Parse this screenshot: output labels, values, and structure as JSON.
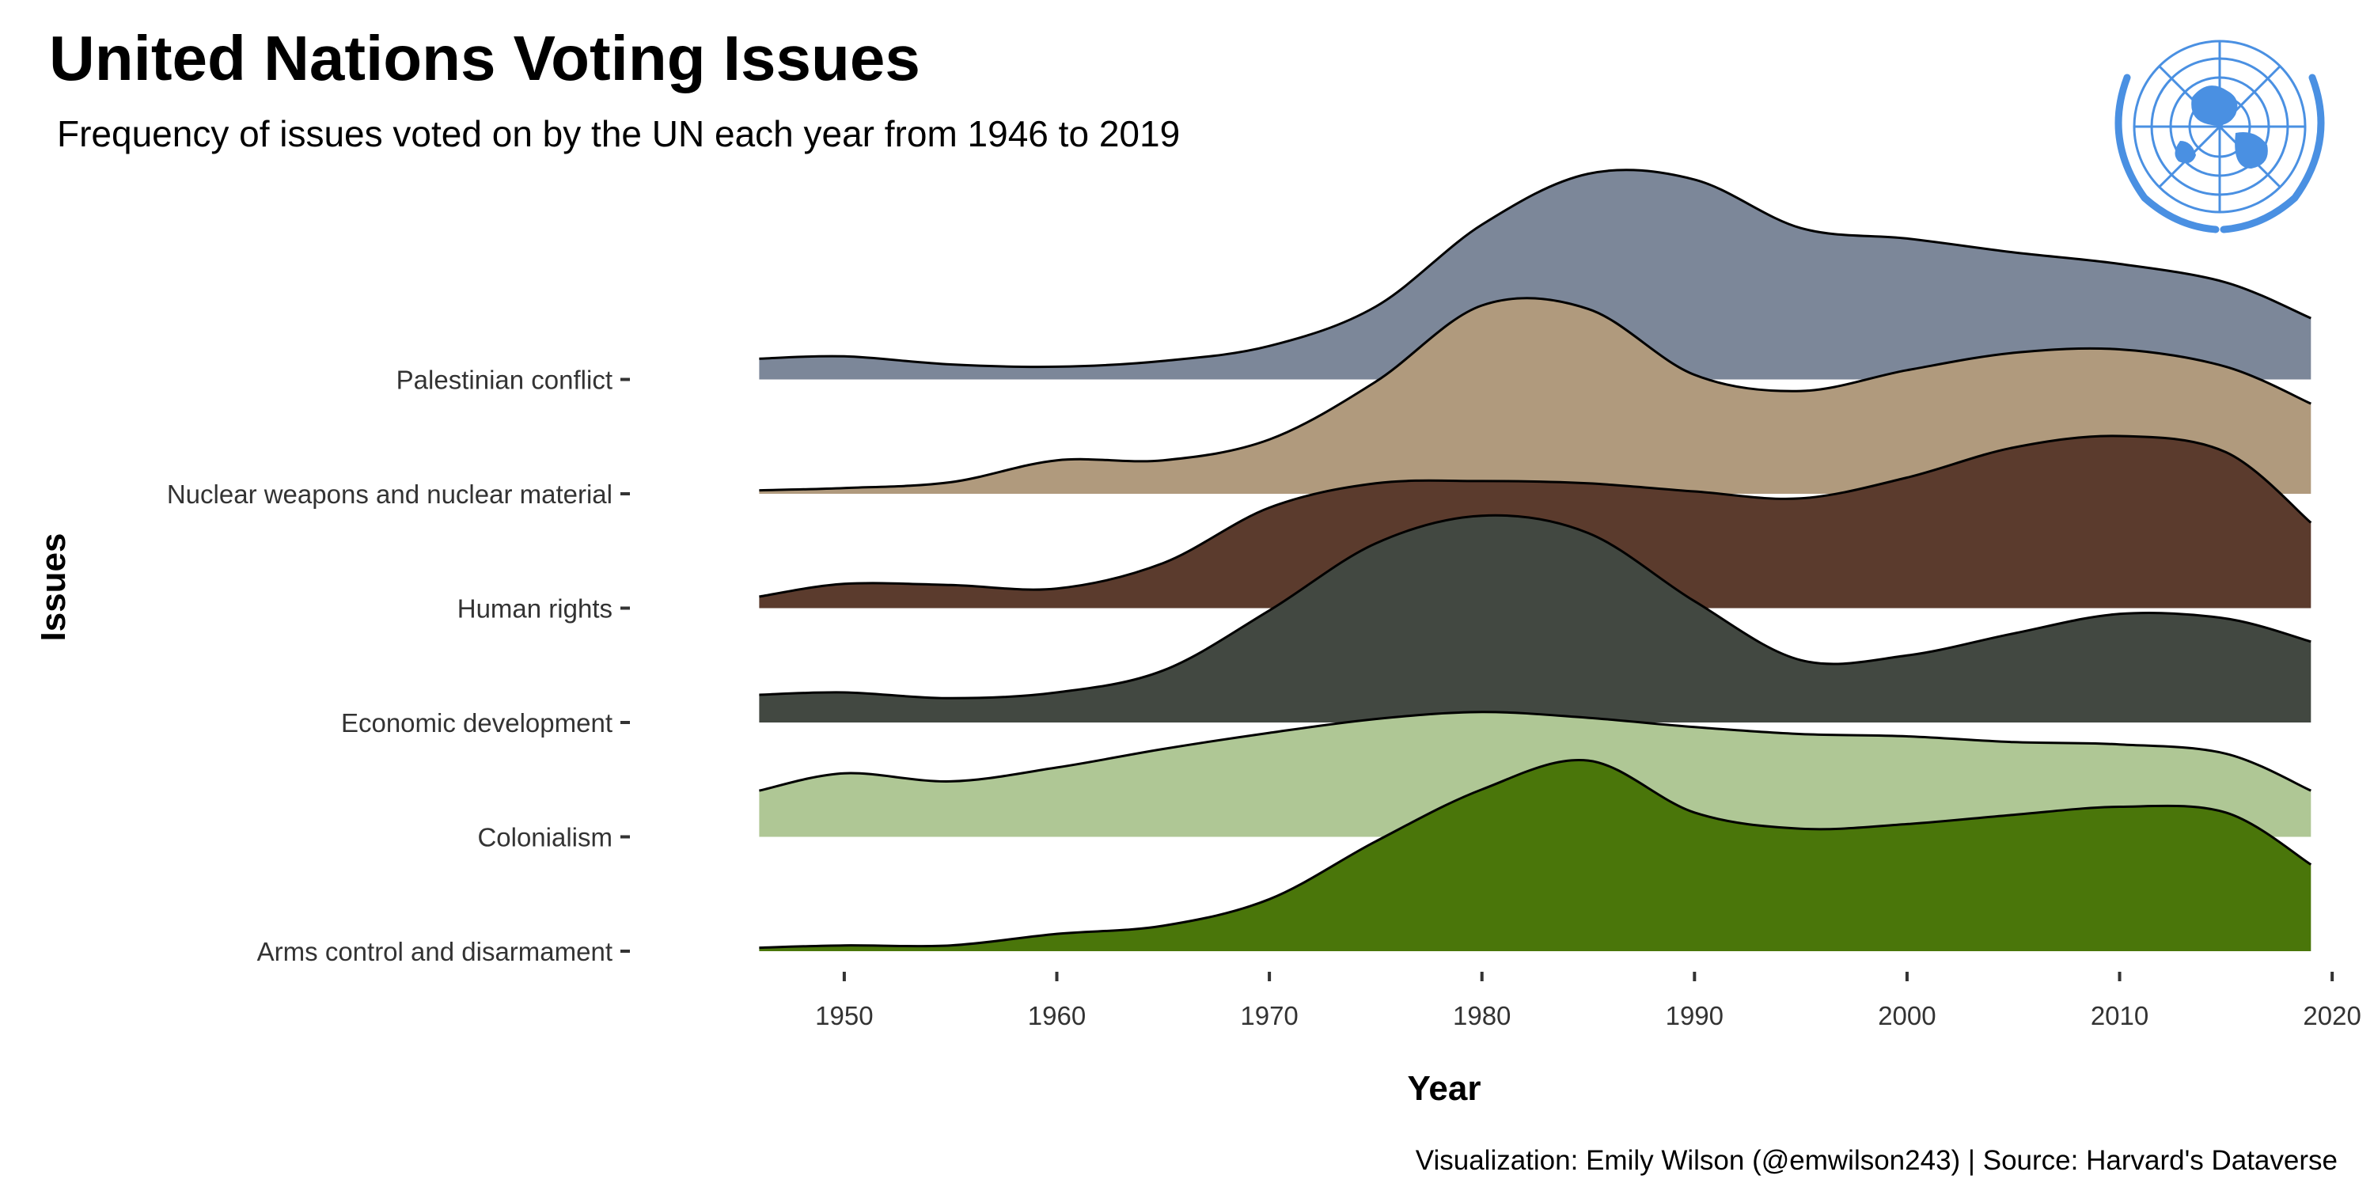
{
  "title": "United Nations Voting Issues",
  "subtitle": "Frequency of issues voted on by the UN each year from 1946 to 2019",
  "caption": "Visualization: Emily Wilson (@emwilson243) | Source: Harvard's Dataverse",
  "logo": {
    "icon": "united-nations-emblem-icon",
    "color": "#4a90e2"
  },
  "chart_data": {
    "type": "area",
    "subtype": "ridgeline-density",
    "xlabel": "Year",
    "ylabel": "Issues",
    "xlim": [
      1942,
      2021
    ],
    "xticks": [
      1950,
      1960,
      1970,
      1980,
      1990,
      2000,
      2010,
      2020
    ],
    "x_range": [
      1946,
      2019
    ],
    "grid": false,
    "legend": "none",
    "series": [
      {
        "name": "Arms control and disarmament",
        "color": "#4a760a",
        "points": [
          [
            1946,
            0.03
          ],
          [
            1950,
            0.05
          ],
          [
            1955,
            0.05
          ],
          [
            1960,
            0.15
          ],
          [
            1965,
            0.22
          ],
          [
            1970,
            0.45
          ],
          [
            1975,
            0.95
          ],
          [
            1980,
            1.4
          ],
          [
            1985,
            1.65
          ],
          [
            1990,
            1.2
          ],
          [
            1995,
            1.06
          ],
          [
            2000,
            1.1
          ],
          [
            2005,
            1.18
          ],
          [
            2010,
            1.25
          ],
          [
            2015,
            1.2
          ],
          [
            2019,
            0.75
          ]
        ]
      },
      {
        "name": "Colonialism",
        "color": "#afc795",
        "points": [
          [
            1946,
            0.4
          ],
          [
            1950,
            0.55
          ],
          [
            1955,
            0.48
          ],
          [
            1960,
            0.6
          ],
          [
            1965,
            0.76
          ],
          [
            1970,
            0.9
          ],
          [
            1975,
            1.02
          ],
          [
            1980,
            1.08
          ],
          [
            1985,
            1.03
          ],
          [
            1990,
            0.95
          ],
          [
            1995,
            0.89
          ],
          [
            2000,
            0.87
          ],
          [
            2005,
            0.82
          ],
          [
            2010,
            0.8
          ],
          [
            2015,
            0.72
          ],
          [
            2019,
            0.4
          ]
        ]
      },
      {
        "name": "Economic development",
        "color": "#424841",
        "points": [
          [
            1946,
            0.24
          ],
          [
            1950,
            0.26
          ],
          [
            1955,
            0.21
          ],
          [
            1960,
            0.26
          ],
          [
            1965,
            0.45
          ],
          [
            1970,
            0.97
          ],
          [
            1975,
            1.55
          ],
          [
            1980,
            1.79
          ],
          [
            1985,
            1.64
          ],
          [
            1990,
            1.05
          ],
          [
            1995,
            0.54
          ],
          [
            2000,
            0.58
          ],
          [
            2005,
            0.77
          ],
          [
            2010,
            0.94
          ],
          [
            2015,
            0.9
          ],
          [
            2019,
            0.7
          ]
        ]
      },
      {
        "name": "Human rights",
        "color": "#5b3b2d",
        "points": [
          [
            1946,
            0.1
          ],
          [
            1950,
            0.21
          ],
          [
            1955,
            0.2
          ],
          [
            1960,
            0.17
          ],
          [
            1965,
            0.39
          ],
          [
            1970,
            0.87
          ],
          [
            1975,
            1.08
          ],
          [
            1980,
            1.1
          ],
          [
            1985,
            1.08
          ],
          [
            1990,
            1.01
          ],
          [
            1995,
            0.95
          ],
          [
            2000,
            1.13
          ],
          [
            2005,
            1.39
          ],
          [
            2010,
            1.49
          ],
          [
            2015,
            1.35
          ],
          [
            2019,
            0.74
          ]
        ]
      },
      {
        "name": "Nuclear weapons and nuclear material",
        "color": "#b09a7d",
        "points": [
          [
            1946,
            0.03
          ],
          [
            1950,
            0.05
          ],
          [
            1955,
            0.1
          ],
          [
            1960,
            0.29
          ],
          [
            1965,
            0.29
          ],
          [
            1970,
            0.47
          ],
          [
            1975,
            0.97
          ],
          [
            1980,
            1.63
          ],
          [
            1985,
            1.6
          ],
          [
            1990,
            1.03
          ],
          [
            1995,
            0.89
          ],
          [
            2000,
            1.07
          ],
          [
            2005,
            1.22
          ],
          [
            2010,
            1.25
          ],
          [
            2015,
            1.1
          ],
          [
            2019,
            0.78
          ]
        ]
      },
      {
        "name": "Palestinian conflict",
        "color": "#7c8799",
        "points": [
          [
            1946,
            0.18
          ],
          [
            1950,
            0.2
          ],
          [
            1955,
            0.13
          ],
          [
            1960,
            0.11
          ],
          [
            1965,
            0.16
          ],
          [
            1970,
            0.29
          ],
          [
            1975,
            0.63
          ],
          [
            1980,
            1.34
          ],
          [
            1985,
            1.78
          ],
          [
            1990,
            1.73
          ],
          [
            1995,
            1.31
          ],
          [
            2000,
            1.22
          ],
          [
            2005,
            1.1
          ],
          [
            2010,
            1.0
          ],
          [
            2015,
            0.84
          ],
          [
            2019,
            0.53
          ]
        ]
      }
    ]
  }
}
